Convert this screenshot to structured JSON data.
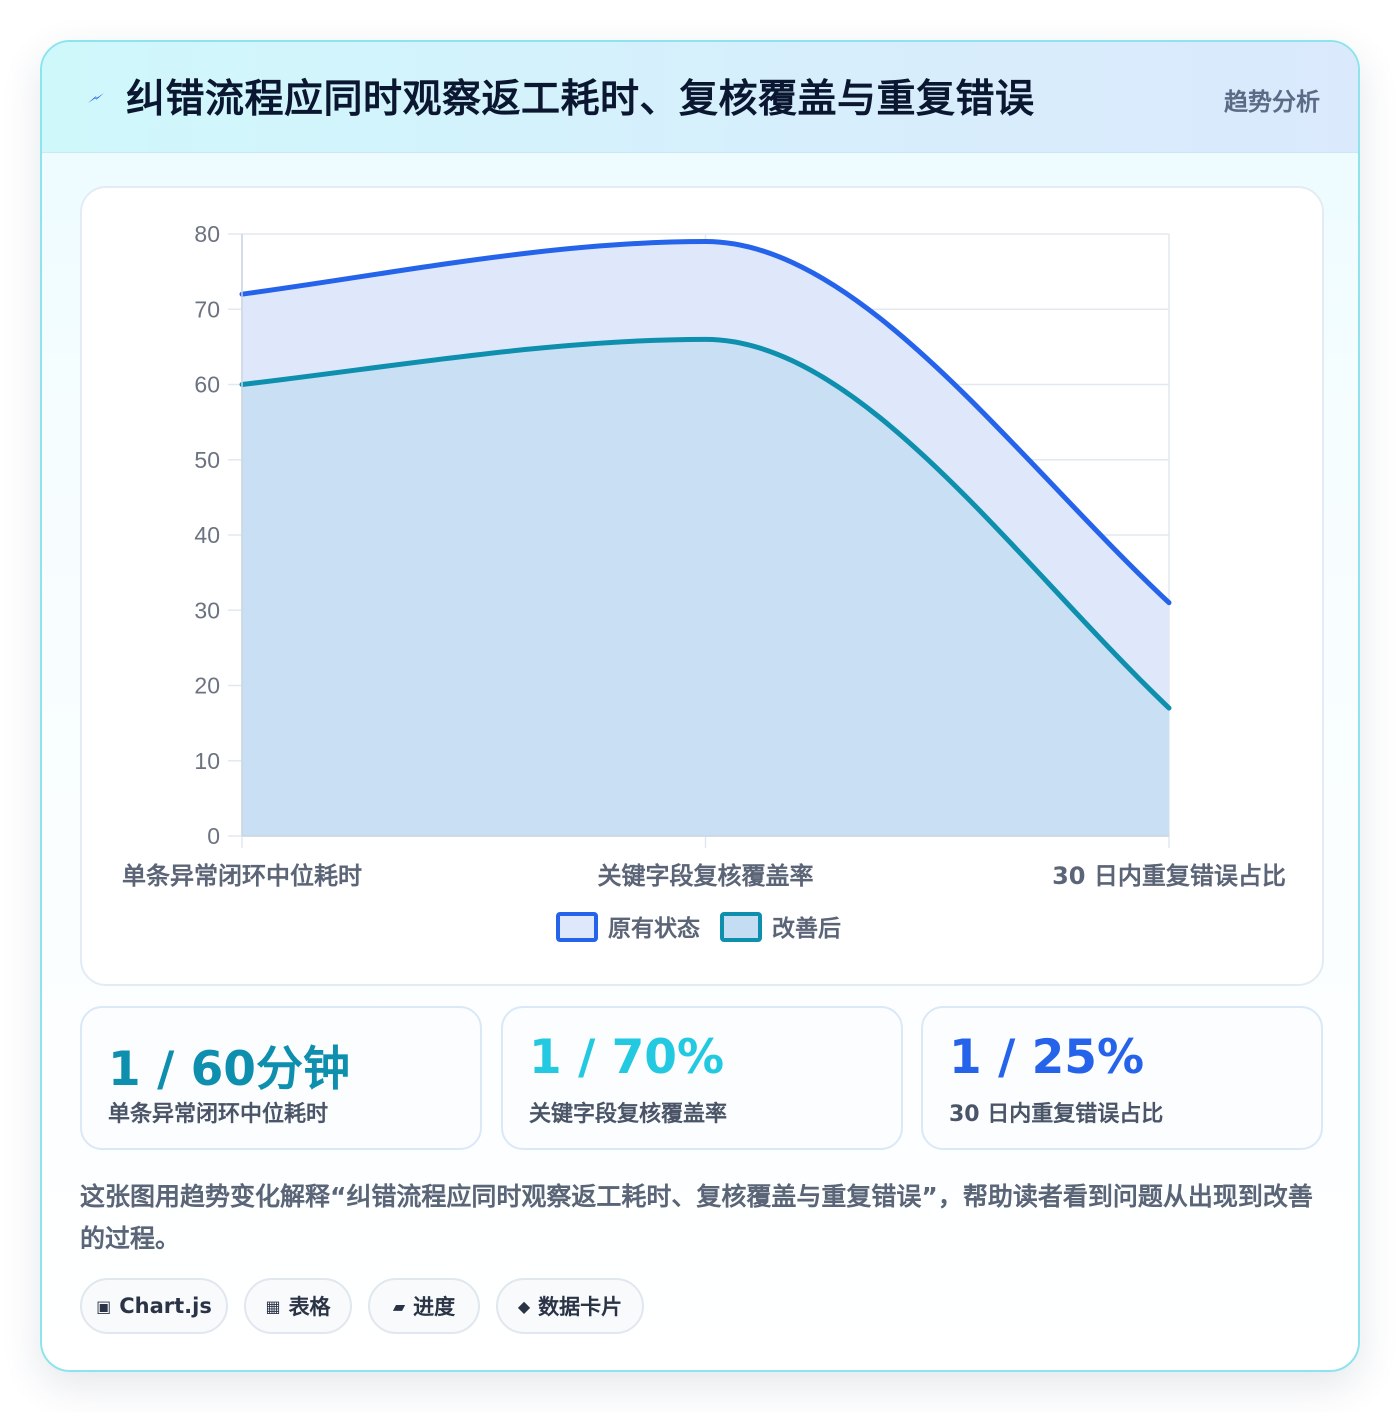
{
  "header": {
    "title": "纠错流程应同时观察返工耗时、复核覆盖与重复错误",
    "tag": "趋势分析",
    "accent": "#2563eb"
  },
  "chart_data": {
    "type": "area",
    "categories": [
      "单条异常闭环中位耗时",
      "关键字段复核覆盖率",
      "30 日内重复错误占比"
    ],
    "ylim": [
      0,
      80
    ],
    "yticks": [
      0,
      10,
      20,
      30,
      40,
      50,
      60,
      70,
      80
    ],
    "grid": true,
    "legend_position": "bottom",
    "series": [
      {
        "name": "原有状态",
        "values": [
          72,
          79,
          31
        ],
        "color": "#2563eb",
        "fill": "#dfe8fb"
      },
      {
        "name": "改善后",
        "values": [
          60,
          66,
          17
        ],
        "color": "#0e8fae",
        "fill": "#c5ddf2"
      }
    ]
  },
  "stats": [
    {
      "value": "1 / 60分钟",
      "label": "单条异常闭环中位耗时",
      "color": "#0e8fae"
    },
    {
      "value": "1 / 70%",
      "label": "关键字段复核覆盖率",
      "color": "#22c9e0"
    },
    {
      "value": "1 / 25%",
      "label": "30 日内重复错误占比",
      "color": "#2563eb"
    }
  ],
  "description": "这张图用趋势变化解释“纠错流程应同时观察返工耗时、复核覆盖与重复错误”，帮助读者看到问题从出现到改善的过程。",
  "pills": [
    {
      "icon": "▣",
      "label": "Chart.js"
    },
    {
      "icon": "▦",
      "label": "表格"
    },
    {
      "icon": "▰",
      "label": "进度"
    },
    {
      "icon": "◆",
      "label": "数据卡片"
    }
  ]
}
